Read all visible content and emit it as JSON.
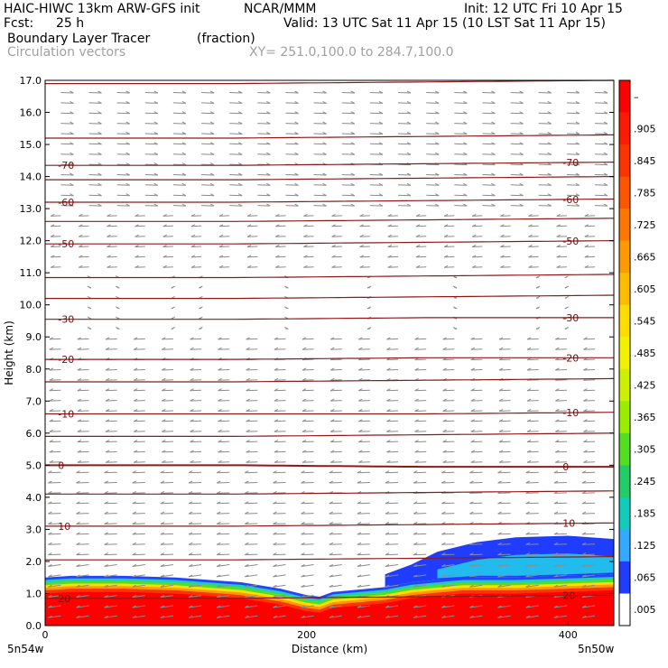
{
  "header": {
    "model": "HAIC-HIWC 13km ARW-GFS init",
    "org": "NCAR/MMM",
    "init": "Init: 12 UTC Fri 10 Apr 15",
    "fcst_label": "Fcst:",
    "fcst_value": "25 h",
    "valid": "Valid: 13 UTC Sat 11 Apr 15 (10 LST Sat 11 Apr 15)",
    "field": "Boundary Layer Tracer",
    "units": "(fraction)",
    "vectors": "Circulation vectors",
    "xy": "XY= 251.0,100.0 to 284.7,100.0"
  },
  "colors": {
    "contour": "#8b1a1a",
    "vector": "#8c8c8c",
    "tracer_red": "#ff0000",
    "tracer_blue": "#1f3cff"
  },
  "chart_data": {
    "type": "heatmap",
    "xlabel": "Distance (km)",
    "ylabel": "Height (km)",
    "xlim": [
      0,
      435
    ],
    "ylim": [
      0,
      17
    ],
    "x_ticks": [
      0,
      200,
      400
    ],
    "y_ticks": [
      "0.0",
      "1.0",
      "2.0",
      "3.0",
      "4.0",
      "5.0",
      "6.0",
      "7.0",
      "8.0",
      "9.0",
      "10.0",
      "11.0",
      "12.0",
      "13.0",
      "14.0",
      "15.0",
      "16.0",
      "17.0"
    ],
    "endpoint_labels": {
      "left": "5n54w",
      "right": "5n50w"
    },
    "colorbar": {
      "labels": [
        "–",
        ".905",
        ".845",
        ".785",
        ".725",
        ".665",
        ".605",
        ".545",
        ".485",
        ".425",
        ".365",
        ".305",
        ".245",
        ".185",
        ".125",
        ".065",
        ".005"
      ],
      "colors": [
        "#ff0000",
        "#ff1a00",
        "#ff3300",
        "#ff5500",
        "#ff7700",
        "#ff9900",
        "#ffbb00",
        "#ffdd00",
        "#f2f200",
        "#ccf000",
        "#99ee00",
        "#55dd22",
        "#22cc66",
        "#11ccbb",
        "#33aaff",
        "#1f3cff",
        "#ffffff"
      ]
    },
    "temperature_contours": {
      "units": "°C",
      "lines": [
        {
          "label": "20",
          "heights": [
            0.85,
            0.85,
            0.9,
            0.95
          ]
        },
        {
          "label": "10",
          "heights": [
            3.1,
            3.1,
            3.15,
            3.2
          ]
        },
        {
          "label": "0",
          "heights": [
            5.0,
            5.0,
            4.95,
            4.95
          ]
        },
        {
          "label": "-10",
          "heights": [
            6.6,
            6.6,
            6.6,
            6.65
          ]
        },
        {
          "label": "-20",
          "heights": [
            8.3,
            8.3,
            8.35,
            8.35
          ]
        },
        {
          "label": "-30",
          "heights": [
            9.55,
            9.55,
            9.6,
            9.6
          ]
        },
        {
          "label": "-50",
          "heights": [
            11.9,
            11.9,
            11.95,
            12.0
          ]
        },
        {
          "label": "-60",
          "heights": [
            13.2,
            13.2,
            13.25,
            13.3
          ]
        },
        {
          "label": "-70",
          "heights": [
            14.35,
            14.35,
            14.4,
            14.45
          ]
        }
      ],
      "unlabeled_heights": [
        2.05,
        4.1,
        5.9,
        7.6,
        10.2,
        10.85,
        12.6,
        13.9,
        15.2,
        16.9
      ]
    },
    "tracer_top_km": {
      "x": [
        0,
        20,
        60,
        100,
        150,
        180,
        200,
        210,
        220,
        260,
        280,
        320,
        360,
        400,
        435
      ],
      "top": [
        1.5,
        1.55,
        1.55,
        1.5,
        1.35,
        1.15,
        0.95,
        0.9,
        1.05,
        1.2,
        1.35,
        1.5,
        1.5,
        1.55,
        1.6
      ]
    },
    "tracer_blue_top_km": {
      "x": [
        260,
        280,
        300,
        330,
        360,
        400,
        435
      ],
      "top": [
        1.6,
        1.9,
        2.3,
        2.6,
        2.75,
        2.8,
        2.7
      ]
    }
  }
}
